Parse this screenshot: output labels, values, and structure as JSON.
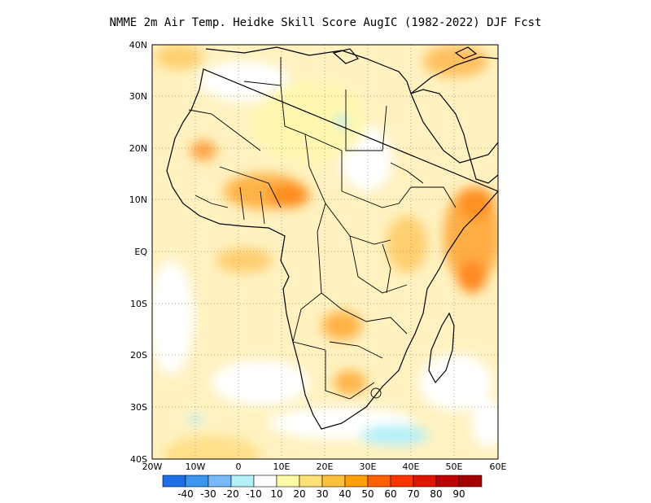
{
  "title": "NMME  2m Air Temp. Heidke Skill Score AugIC (1982-2022) DJF Fcst",
  "axes": {
    "lat_labels": [
      "40N",
      "30N",
      "20N",
      "10N",
      "EQ",
      "10S",
      "20S",
      "30S",
      "40S"
    ],
    "lon_labels": [
      "20W",
      "10W",
      "0",
      "10E",
      "20E",
      "30E",
      "40E",
      "50E",
      "60E"
    ]
  },
  "colorbar": {
    "colors": [
      "#1e6ee6",
      "#3c96f0",
      "#78b9fa",
      "#b4f0fa",
      "#ffffff",
      "#fffaaa",
      "#ffe178",
      "#ffc03c",
      "#ffa000",
      "#ff6000",
      "#ff3200",
      "#e11400",
      "#c00000",
      "#a50000"
    ],
    "labels": [
      "-40",
      "-30",
      "-20",
      "-10",
      "10",
      "20",
      "30",
      "40",
      "50",
      "60",
      "70",
      "80",
      "90"
    ]
  }
}
